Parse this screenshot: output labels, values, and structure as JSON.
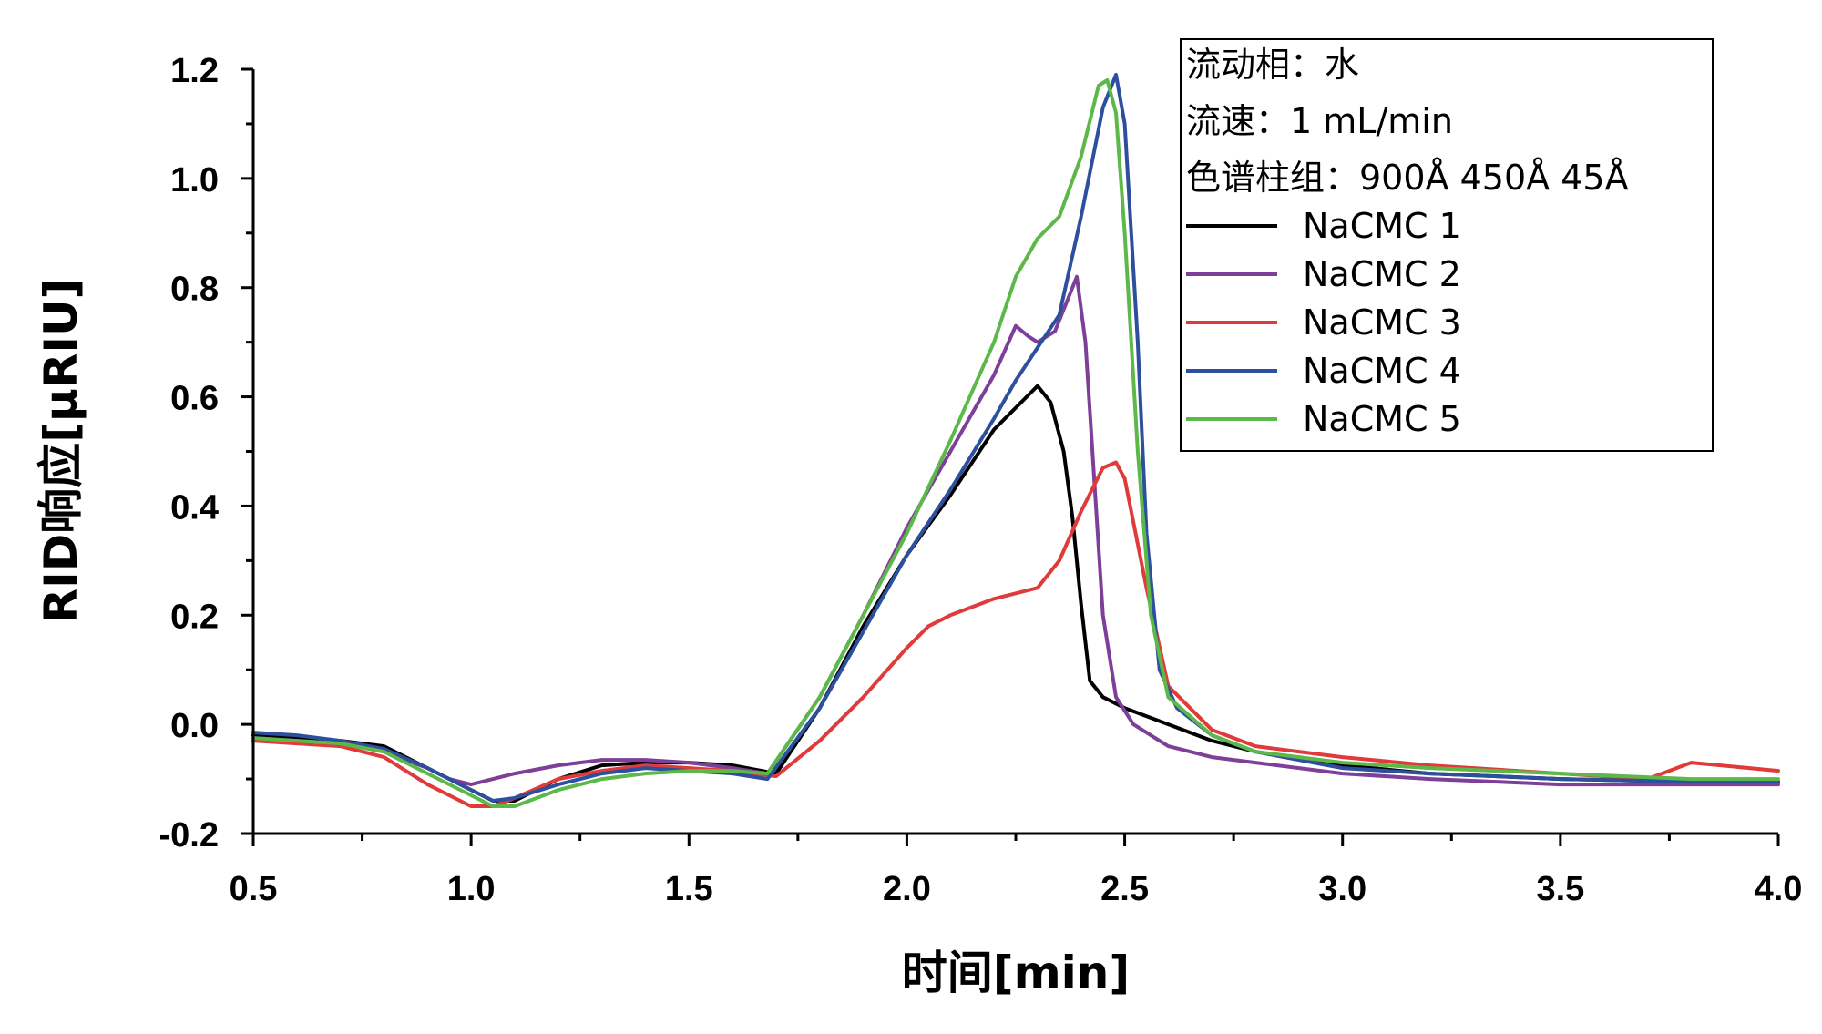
{
  "chart_data": {
    "type": "line",
    "xlabel": "时间[min]",
    "ylabel": "RID响应[μRIU]",
    "xlim": [
      0.5,
      4.0
    ],
    "ylim": [
      -0.2,
      1.2
    ],
    "xticks": [
      "0.5",
      "1.0",
      "1.5",
      "2.0",
      "2.5",
      "3.0",
      "3.5",
      "4.0"
    ],
    "yticks": [
      "-0.2",
      "0.0",
      "0.2",
      "0.4",
      "0.6",
      "0.8",
      "1.0",
      "1.2"
    ],
    "grid": false,
    "legend_position": "top-right",
    "legend_notes": [
      "流动相：水",
      "流速：1 mL/min",
      "色谱柱组：900Å 450Å 45Å"
    ],
    "series": [
      {
        "name": "NaCMC 1",
        "color": "#000000",
        "x": [
          0.5,
          0.6,
          0.7,
          0.8,
          0.9,
          1.0,
          1.05,
          1.1,
          1.2,
          1.3,
          1.4,
          1.5,
          1.6,
          1.7,
          1.8,
          1.9,
          2.0,
          2.1,
          2.2,
          2.25,
          2.3,
          2.33,
          2.36,
          2.38,
          2.4,
          2.42,
          2.45,
          2.5,
          2.6,
          2.7,
          2.8,
          3.0,
          3.2,
          3.5,
          3.8,
          4.0
        ],
        "y": [
          -0.02,
          -0.025,
          -0.03,
          -0.04,
          -0.08,
          -0.12,
          -0.14,
          -0.14,
          -0.1,
          -0.075,
          -0.07,
          -0.07,
          -0.075,
          -0.09,
          0.03,
          0.18,
          0.31,
          0.42,
          0.54,
          0.58,
          0.62,
          0.59,
          0.5,
          0.38,
          0.22,
          0.08,
          0.05,
          0.03,
          0.0,
          -0.03,
          -0.05,
          -0.075,
          -0.09,
          -0.1,
          -0.105,
          -0.105
        ]
      },
      {
        "name": "NaCMC 2",
        "color": "#7E3F98",
        "x": [
          0.5,
          0.6,
          0.7,
          0.8,
          0.9,
          0.95,
          1.0,
          1.05,
          1.1,
          1.2,
          1.3,
          1.4,
          1.5,
          1.6,
          1.68,
          1.8,
          1.9,
          2.0,
          2.1,
          2.2,
          2.25,
          2.28,
          2.3,
          2.34,
          2.37,
          2.39,
          2.41,
          2.43,
          2.45,
          2.48,
          2.52,
          2.6,
          2.7,
          2.8,
          3.0,
          3.2,
          3.5,
          3.8,
          4.0
        ],
        "y": [
          -0.025,
          -0.03,
          -0.035,
          -0.05,
          -0.08,
          -0.1,
          -0.11,
          -0.1,
          -0.09,
          -0.075,
          -0.065,
          -0.065,
          -0.07,
          -0.08,
          -0.09,
          0.05,
          0.2,
          0.36,
          0.5,
          0.64,
          0.73,
          0.71,
          0.7,
          0.72,
          0.78,
          0.82,
          0.7,
          0.45,
          0.2,
          0.05,
          0.0,
          -0.04,
          -0.06,
          -0.07,
          -0.09,
          -0.1,
          -0.11,
          -0.11,
          -0.11
        ]
      },
      {
        "name": "NaCMC 3",
        "color": "#E03A3A",
        "x": [
          0.5,
          0.6,
          0.7,
          0.8,
          0.9,
          1.0,
          1.05,
          1.1,
          1.2,
          1.3,
          1.4,
          1.5,
          1.6,
          1.7,
          1.8,
          1.9,
          2.0,
          2.05,
          2.1,
          2.2,
          2.3,
          2.35,
          2.4,
          2.45,
          2.48,
          2.5,
          2.55,
          2.6,
          2.7,
          2.8,
          3.0,
          3.2,
          3.5,
          3.7,
          3.8,
          4.0
        ],
        "y": [
          -0.03,
          -0.035,
          -0.04,
          -0.06,
          -0.11,
          -0.15,
          -0.15,
          -0.135,
          -0.1,
          -0.085,
          -0.075,
          -0.08,
          -0.085,
          -0.095,
          -0.03,
          0.05,
          0.14,
          0.18,
          0.2,
          0.23,
          0.25,
          0.3,
          0.39,
          0.47,
          0.48,
          0.45,
          0.25,
          0.07,
          -0.01,
          -0.04,
          -0.06,
          -0.075,
          -0.09,
          -0.1,
          -0.07,
          -0.085
        ]
      },
      {
        "name": "NaCMC 4",
        "color": "#2E4F9E",
        "x": [
          0.5,
          0.6,
          0.7,
          0.8,
          0.9,
          1.0,
          1.05,
          1.1,
          1.2,
          1.3,
          1.4,
          1.5,
          1.6,
          1.68,
          1.8,
          1.9,
          2.0,
          2.1,
          2.2,
          2.25,
          2.3,
          2.35,
          2.4,
          2.45,
          2.48,
          2.5,
          2.53,
          2.55,
          2.58,
          2.62,
          2.7,
          2.8,
          3.0,
          3.2,
          3.5,
          3.8,
          4.0
        ],
        "y": [
          -0.015,
          -0.02,
          -0.03,
          -0.045,
          -0.08,
          -0.12,
          -0.14,
          -0.135,
          -0.11,
          -0.09,
          -0.08,
          -0.085,
          -0.09,
          -0.1,
          0.03,
          0.17,
          0.31,
          0.43,
          0.56,
          0.63,
          0.69,
          0.75,
          0.93,
          1.13,
          1.19,
          1.1,
          0.7,
          0.35,
          0.1,
          0.03,
          -0.02,
          -0.05,
          -0.08,
          -0.09,
          -0.1,
          -0.105,
          -0.105
        ]
      },
      {
        "name": "NaCMC 5",
        "color": "#5DB84A",
        "x": [
          0.5,
          0.6,
          0.7,
          0.8,
          0.9,
          1.0,
          1.05,
          1.1,
          1.2,
          1.3,
          1.4,
          1.5,
          1.6,
          1.68,
          1.8,
          1.9,
          2.0,
          2.1,
          2.2,
          2.25,
          2.3,
          2.35,
          2.4,
          2.44,
          2.46,
          2.48,
          2.5,
          2.53,
          2.56,
          2.6,
          2.7,
          2.8,
          3.0,
          3.2,
          3.5,
          3.8,
          4.0
        ],
        "y": [
          -0.025,
          -0.03,
          -0.035,
          -0.05,
          -0.09,
          -0.13,
          -0.15,
          -0.15,
          -0.12,
          -0.1,
          -0.09,
          -0.085,
          -0.085,
          -0.09,
          0.05,
          0.2,
          0.35,
          0.52,
          0.7,
          0.82,
          0.89,
          0.93,
          1.04,
          1.17,
          1.18,
          1.12,
          0.9,
          0.5,
          0.2,
          0.05,
          -0.02,
          -0.05,
          -0.07,
          -0.08,
          -0.09,
          -0.1,
          -0.1
        ]
      }
    ]
  }
}
